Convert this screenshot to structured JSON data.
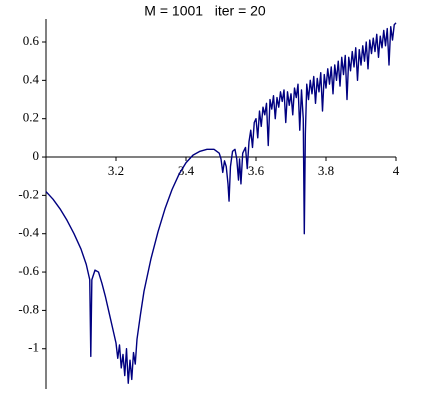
{
  "chart_data": {
    "type": "line",
    "title": "M = 1001   iter = 20",
    "color": "#000080",
    "xlim": [
      3,
      4
    ],
    "ylim": [
      -1.21,
      0.72
    ],
    "xticks": [
      3.2,
      3.4,
      3.6,
      3.8,
      4
    ],
    "yticks": [
      0.6,
      0.4,
      0.2,
      0,
      -0.2,
      -0.4,
      -0.6,
      -0.8,
      -1
    ],
    "x": [
      3.0,
      3.02,
      3.04,
      3.06,
      3.08,
      3.1,
      3.115,
      3.125,
      3.128,
      3.131,
      3.14,
      3.15,
      3.16,
      3.17,
      3.18,
      3.19,
      3.2,
      3.205,
      3.21,
      3.215,
      3.22,
      3.225,
      3.23,
      3.235,
      3.24,
      3.245,
      3.25,
      3.255,
      3.26,
      3.27,
      3.28,
      3.3,
      3.32,
      3.34,
      3.36,
      3.38,
      3.4,
      3.42,
      3.44,
      3.46,
      3.48,
      3.495,
      3.5,
      3.505,
      3.51,
      3.515,
      3.52,
      3.523,
      3.527,
      3.533,
      3.54,
      3.545,
      3.55,
      3.553,
      3.557,
      3.562,
      3.57,
      3.575,
      3.58,
      3.585,
      3.59,
      3.595,
      3.6,
      3.605,
      3.61,
      3.615,
      3.62,
      3.625,
      3.63,
      3.635,
      3.64,
      3.645,
      3.65,
      3.655,
      3.66,
      3.665,
      3.67,
      3.675,
      3.68,
      3.685,
      3.69,
      3.695,
      3.7,
      3.705,
      3.71,
      3.715,
      3.72,
      3.725,
      3.73,
      3.735,
      3.738,
      3.741,
      3.745,
      3.75,
      3.755,
      3.76,
      3.765,
      3.77,
      3.775,
      3.78,
      3.785,
      3.79,
      3.795,
      3.8,
      3.805,
      3.81,
      3.815,
      3.82,
      3.825,
      3.83,
      3.835,
      3.84,
      3.845,
      3.85,
      3.855,
      3.86,
      3.865,
      3.87,
      3.875,
      3.88,
      3.885,
      3.89,
      3.895,
      3.9,
      3.905,
      3.91,
      3.915,
      3.92,
      3.925,
      3.93,
      3.935,
      3.94,
      3.945,
      3.95,
      3.955,
      3.96,
      3.965,
      3.97,
      3.975,
      3.98,
      3.985,
      3.99,
      3.995,
      4.0
    ],
    "values": [
      -0.18,
      -0.22,
      -0.27,
      -0.33,
      -0.4,
      -0.48,
      -0.56,
      -0.64,
      -1.04,
      -0.64,
      -0.59,
      -0.6,
      -0.66,
      -0.73,
      -0.81,
      -0.89,
      -0.97,
      -1.05,
      -0.98,
      -1.1,
      -1.03,
      -1.14,
      -1.0,
      -1.18,
      -1.06,
      -1.16,
      -1.02,
      -1.08,
      -0.95,
      -0.82,
      -0.7,
      -0.53,
      -0.39,
      -0.27,
      -0.17,
      -0.09,
      -0.03,
      0.01,
      0.03,
      0.04,
      0.04,
      0.02,
      -0.01,
      -0.08,
      -0.02,
      -0.05,
      -0.14,
      -0.23,
      -0.05,
      0.03,
      0.04,
      -0.01,
      -0.12,
      -0.01,
      -0.14,
      0.02,
      0.05,
      -0.06,
      0.08,
      0.14,
      0.05,
      0.18,
      0.2,
      0.1,
      0.24,
      0.16,
      0.26,
      0.22,
      0.28,
      0.06,
      0.3,
      0.25,
      0.32,
      0.2,
      0.31,
      0.26,
      0.34,
      0.29,
      0.35,
      0.18,
      0.34,
      0.27,
      0.33,
      0.22,
      0.36,
      0.31,
      0.38,
      0.14,
      0.35,
      0.2,
      -0.4,
      0.12,
      0.38,
      0.3,
      0.4,
      0.33,
      0.42,
      0.28,
      0.41,
      0.34,
      0.44,
      0.24,
      0.43,
      0.36,
      0.46,
      0.38,
      0.47,
      0.33,
      0.48,
      0.4,
      0.5,
      0.37,
      0.52,
      0.43,
      0.53,
      0.3,
      0.52,
      0.45,
      0.55,
      0.47,
      0.57,
      0.4,
      0.56,
      0.48,
      0.58,
      0.5,
      0.6,
      0.46,
      0.61,
      0.54,
      0.62,
      0.55,
      0.64,
      0.52,
      0.63,
      0.57,
      0.66,
      0.58,
      0.67,
      0.48,
      0.68,
      0.61,
      0.69,
      0.7
    ]
  }
}
